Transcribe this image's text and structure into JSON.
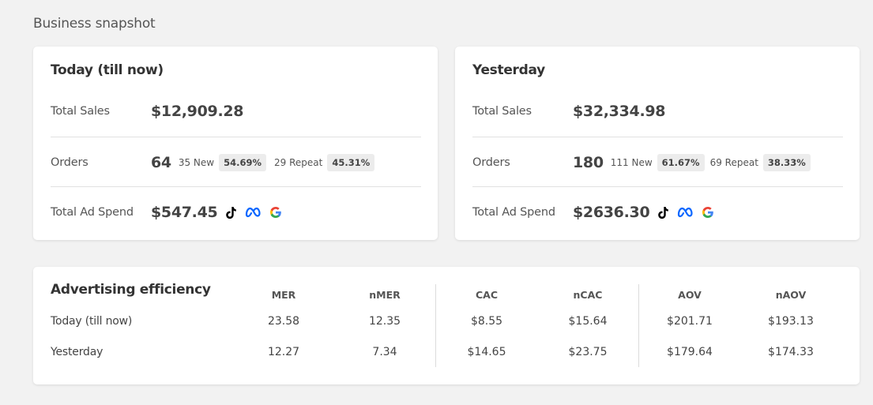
{
  "page": {
    "section_title": "Business snapshot"
  },
  "snapshot_cards": [
    {
      "title": "Today (till now)",
      "total_sales_label": "Total Sales",
      "total_sales": "$12,909.28",
      "orders_label": "Orders",
      "orders": "64",
      "new_text": "35 New",
      "new_pct": "54.69%",
      "repeat_text": "29 Repeat",
      "repeat_pct": "45.31%",
      "ad_spend_label": "Total Ad Spend",
      "ad_spend": "$547.45"
    },
    {
      "title": "Yesterday",
      "total_sales_label": "Total Sales",
      "total_sales": "$32,334.98",
      "orders_label": "Orders",
      "orders": "180",
      "new_text": "111 New",
      "new_pct": "61.67%",
      "repeat_text": "69 Repeat",
      "repeat_pct": "38.33%",
      "ad_spend_label": "Total Ad Spend",
      "ad_spend": "$2636.30"
    }
  ],
  "ad_platform_icons": [
    "tiktok-icon",
    "meta-icon",
    "google-icon"
  ],
  "advertising_efficiency": {
    "title": "Advertising efficiency",
    "columns": [
      "MER",
      "nMER",
      "CAC",
      "nCAC",
      "AOV",
      "nAOV"
    ],
    "rows": [
      {
        "label": "Today (till now)",
        "values": [
          "23.58",
          "12.35",
          "$8.55",
          "$15.64",
          "$201.71",
          "$193.13"
        ]
      },
      {
        "label": "Yesterday",
        "values": [
          "12.27",
          "7.34",
          "$14.65",
          "$23.75",
          "$179.64",
          "$174.33"
        ]
      }
    ]
  },
  "colors": {
    "background": "#f2f2f2",
    "card": "#ffffff",
    "meta_blue": "#0866ff",
    "google_blue": "#4285F4",
    "google_red": "#EA4335",
    "google_yellow": "#FBBC05",
    "google_green": "#34A853"
  }
}
